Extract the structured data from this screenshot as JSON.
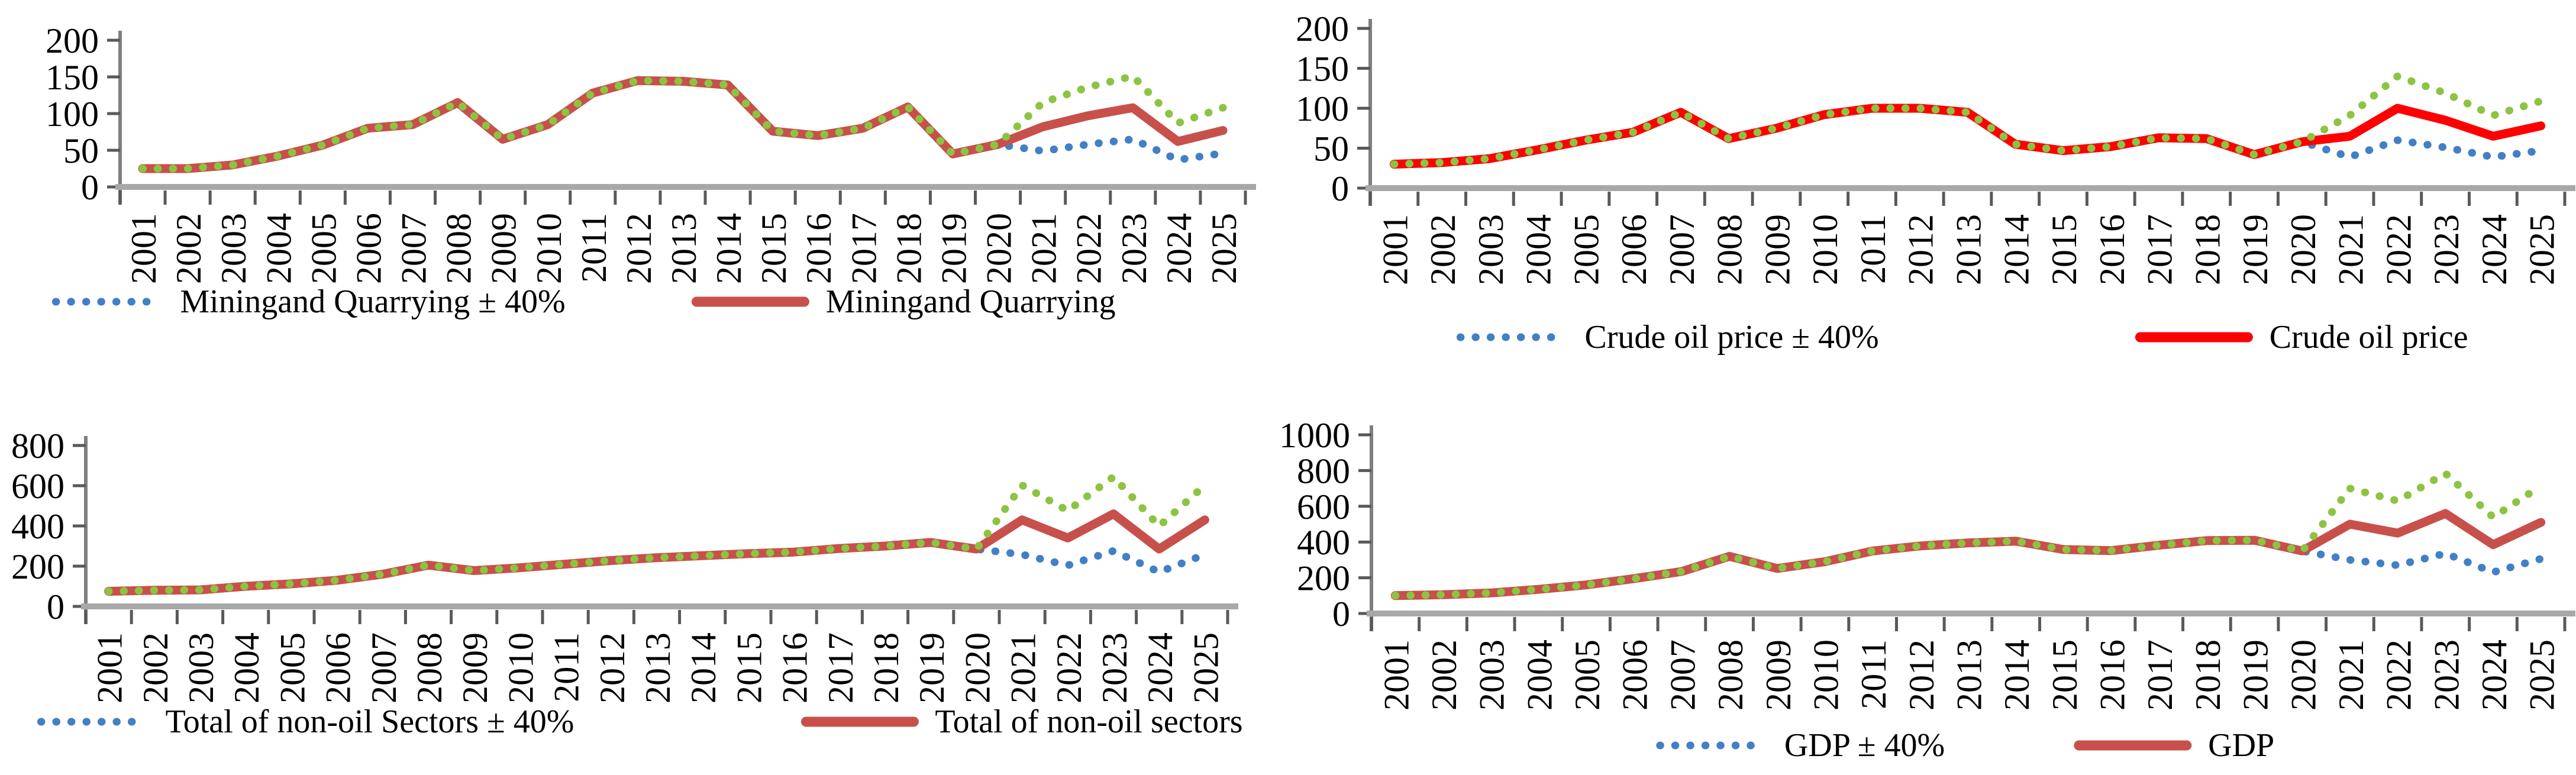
{
  "page": {
    "background": "#FFFFFF",
    "title": ""
  },
  "colors": {
    "brick_red": "#C8504B",
    "bright_red": "#FF0000",
    "bound_green": "#8CC442",
    "bound_blue": "#4180C6",
    "baseline_gray": "#A8A8A8",
    "axis_gray": "#7F7F7F",
    "tick_dark": "#595959",
    "text_black": "#000000"
  },
  "chart_data": [
    {
      "type": "line",
      "title": "",
      "xlabel": "",
      "ylabel": "",
      "x": [
        2001,
        2002,
        2003,
        2004,
        2005,
        2006,
        2007,
        2008,
        2009,
        2010,
        2011,
        2012,
        2013,
        2014,
        2015,
        2016,
        2017,
        2018,
        2019,
        2020,
        2021,
        2022,
        2023,
        2024,
        2025
      ],
      "ylim": [
        0,
        200
      ],
      "yticks": [
        0,
        50,
        100,
        150,
        200
      ],
      "grid": false,
      "legend_position": "bottom",
      "series": [
        {
          "name": "Miningand Quarrying - 40% (lower bound)",
          "role": "lower",
          "line_style": "dotted",
          "color": "#4180C6",
          "values": [
            25,
            25,
            30,
            42,
            57,
            80,
            85,
            115,
            65,
            85,
            128,
            145,
            144,
            139,
            76,
            70,
            80,
            109,
            45,
            58,
            49,
            58,
            65,
            37,
            46
          ]
        },
        {
          "name": "Miningand Quarrying",
          "role": "central",
          "line_style": "solid",
          "color": "#C8504B",
          "values": [
            25,
            25,
            30,
            42,
            57,
            80,
            85,
            115,
            65,
            85,
            128,
            145,
            144,
            139,
            76,
            70,
            80,
            109,
            45,
            58,
            82,
            97,
            108,
            62,
            77
          ]
        },
        {
          "name": "Miningand Quarrying + 40% (upper bound)",
          "role": "upper",
          "line_style": "dotted",
          "color": "#8CC442",
          "values": [
            25,
            25,
            30,
            42,
            57,
            80,
            85,
            115,
            65,
            85,
            128,
            145,
            144,
            139,
            76,
            70,
            80,
            109,
            45,
            58,
            115,
            136,
            151,
            87,
            108
          ]
        }
      ],
      "legend": [
        {
          "label": "Miningand Quarrying ± 40%",
          "swatch": "dotted",
          "color": "#4180C6"
        },
        {
          "label": "Miningand Quarrying",
          "swatch": "solid",
          "color": "#C8504B"
        }
      ]
    },
    {
      "type": "line",
      "title": "",
      "xlabel": "",
      "ylabel": "",
      "x": [
        2001,
        2002,
        2003,
        2004,
        2005,
        2006,
        2007,
        2008,
        2009,
        2010,
        2011,
        2012,
        2013,
        2014,
        2015,
        2016,
        2017,
        2018,
        2019,
        2020,
        2021,
        2022,
        2023,
        2024,
        2025
      ],
      "ylim": [
        0,
        200
      ],
      "yticks": [
        0,
        50,
        100,
        150,
        200
      ],
      "grid": false,
      "legend_position": "bottom",
      "series": [
        {
          "name": "Crude oil price - 40% (lower bound)",
          "role": "lower",
          "line_style": "dotted",
          "color": "#4180C6",
          "values": [
            30,
            32,
            37,
            48,
            60,
            70,
            95,
            62,
            75,
            92,
            100,
            100,
            95,
            55,
            47,
            52,
            63,
            62,
            42,
            58,
            39,
            60,
            51,
            39,
            47
          ]
        },
        {
          "name": "Crude oil price",
          "role": "central",
          "line_style": "solid",
          "color": "#FF0000",
          "values": [
            30,
            32,
            37,
            48,
            60,
            70,
            95,
            62,
            75,
            92,
            100,
            100,
            95,
            55,
            47,
            52,
            63,
            62,
            42,
            58,
            65,
            100,
            85,
            65,
            78
          ]
        },
        {
          "name": "Crude oil price + 40% (upper bound)",
          "role": "upper",
          "line_style": "dotted",
          "color": "#8CC442",
          "values": [
            30,
            32,
            37,
            48,
            60,
            70,
            95,
            62,
            75,
            92,
            100,
            100,
            95,
            55,
            47,
            52,
            63,
            62,
            42,
            58,
            91,
            140,
            119,
            91,
            109
          ]
        }
      ],
      "legend": [
        {
          "label": "Crude oil price ± 40%",
          "swatch": "dotted",
          "color": "#4180C6"
        },
        {
          "label": "Crude oil price",
          "swatch": "solid",
          "color": "#FF0000"
        }
      ]
    },
    {
      "type": "line",
      "title": "",
      "xlabel": "",
      "ylabel": "",
      "x": [
        2001,
        2002,
        2003,
        2004,
        2005,
        2006,
        2007,
        2008,
        2009,
        2010,
        2011,
        2012,
        2013,
        2014,
        2015,
        2016,
        2017,
        2018,
        2019,
        2020,
        2021,
        2022,
        2023,
        2024,
        2025
      ],
      "ylim": [
        0,
        800
      ],
      "yticks": [
        0,
        200,
        400,
        600,
        800
      ],
      "grid": false,
      "legend_position": "bottom",
      "series": [
        {
          "name": "Total of non-oil Sectors - 40% (lower bound)",
          "role": "lower",
          "line_style": "dotted",
          "color": "#4180C6",
          "values": [
            75,
            80,
            82,
            100,
            112,
            130,
            160,
            205,
            178,
            192,
            210,
            228,
            242,
            252,
            262,
            270,
            288,
            300,
            318,
            285,
            258,
            204,
            276,
            171,
            258
          ]
        },
        {
          "name": "Total of non-oil sectors",
          "role": "central",
          "line_style": "solid",
          "color": "#C8504B",
          "values": [
            75,
            80,
            82,
            100,
            112,
            130,
            160,
            205,
            178,
            192,
            210,
            228,
            242,
            252,
            262,
            270,
            288,
            300,
            318,
            285,
            430,
            340,
            460,
            285,
            430
          ]
        },
        {
          "name": "Total of non-oil Sectors + 40% (upper bound)",
          "role": "upper",
          "line_style": "dotted",
          "color": "#8CC442",
          "values": [
            75,
            80,
            82,
            100,
            112,
            130,
            160,
            205,
            178,
            192,
            210,
            228,
            242,
            252,
            262,
            270,
            288,
            300,
            318,
            285,
            602,
            476,
            644,
            399,
            602
          ]
        }
      ],
      "legend": [
        {
          "label": "Total of non-oil Sectors ± 40%",
          "swatch": "dotted",
          "color": "#4180C6"
        },
        {
          "label": "Total of non-oil sectors",
          "swatch": "solid",
          "color": "#C8504B"
        }
      ]
    },
    {
      "type": "line",
      "title": "",
      "xlabel": "",
      "ylabel": "",
      "x": [
        2001,
        2002,
        2003,
        2004,
        2005,
        2006,
        2007,
        2008,
        2009,
        2010,
        2011,
        2012,
        2013,
        2014,
        2015,
        2016,
        2017,
        2018,
        2019,
        2020,
        2021,
        2022,
        2023,
        2024,
        2025
      ],
      "ylim": [
        0,
        1000
      ],
      "yticks": [
        0,
        200,
        400,
        600,
        800,
        1000
      ],
      "grid": false,
      "legend_position": "bottom",
      "series": [
        {
          "name": "GDP - 40% (lower bound)",
          "role": "lower",
          "line_style": "dotted",
          "color": "#4180C6",
          "values": [
            100,
            105,
            115,
            135,
            160,
            195,
            235,
            320,
            252,
            290,
            350,
            378,
            395,
            405,
            358,
            352,
            382,
            408,
            410,
            350,
            300,
            270,
            336,
            231,
            306
          ]
        },
        {
          "name": "GDP",
          "role": "central",
          "line_style": "solid",
          "color": "#C8504B",
          "values": [
            100,
            105,
            115,
            135,
            160,
            195,
            235,
            320,
            252,
            290,
            350,
            378,
            395,
            405,
            358,
            352,
            382,
            408,
            410,
            350,
            500,
            450,
            560,
            385,
            510
          ]
        },
        {
          "name": "GDP + 40% (upper bound)",
          "role": "upper",
          "line_style": "dotted",
          "color": "#8CC442",
          "values": [
            100,
            105,
            115,
            135,
            160,
            195,
            235,
            320,
            252,
            290,
            350,
            378,
            395,
            405,
            358,
            352,
            382,
            408,
            410,
            350,
            700,
            630,
            784,
            539,
            714
          ]
        }
      ],
      "legend": [
        {
          "label": "GDP ± 40%",
          "swatch": "dotted",
          "color": "#4180C6"
        },
        {
          "label": "GDP",
          "swatch": "solid",
          "color": "#C8504B"
        }
      ]
    }
  ]
}
